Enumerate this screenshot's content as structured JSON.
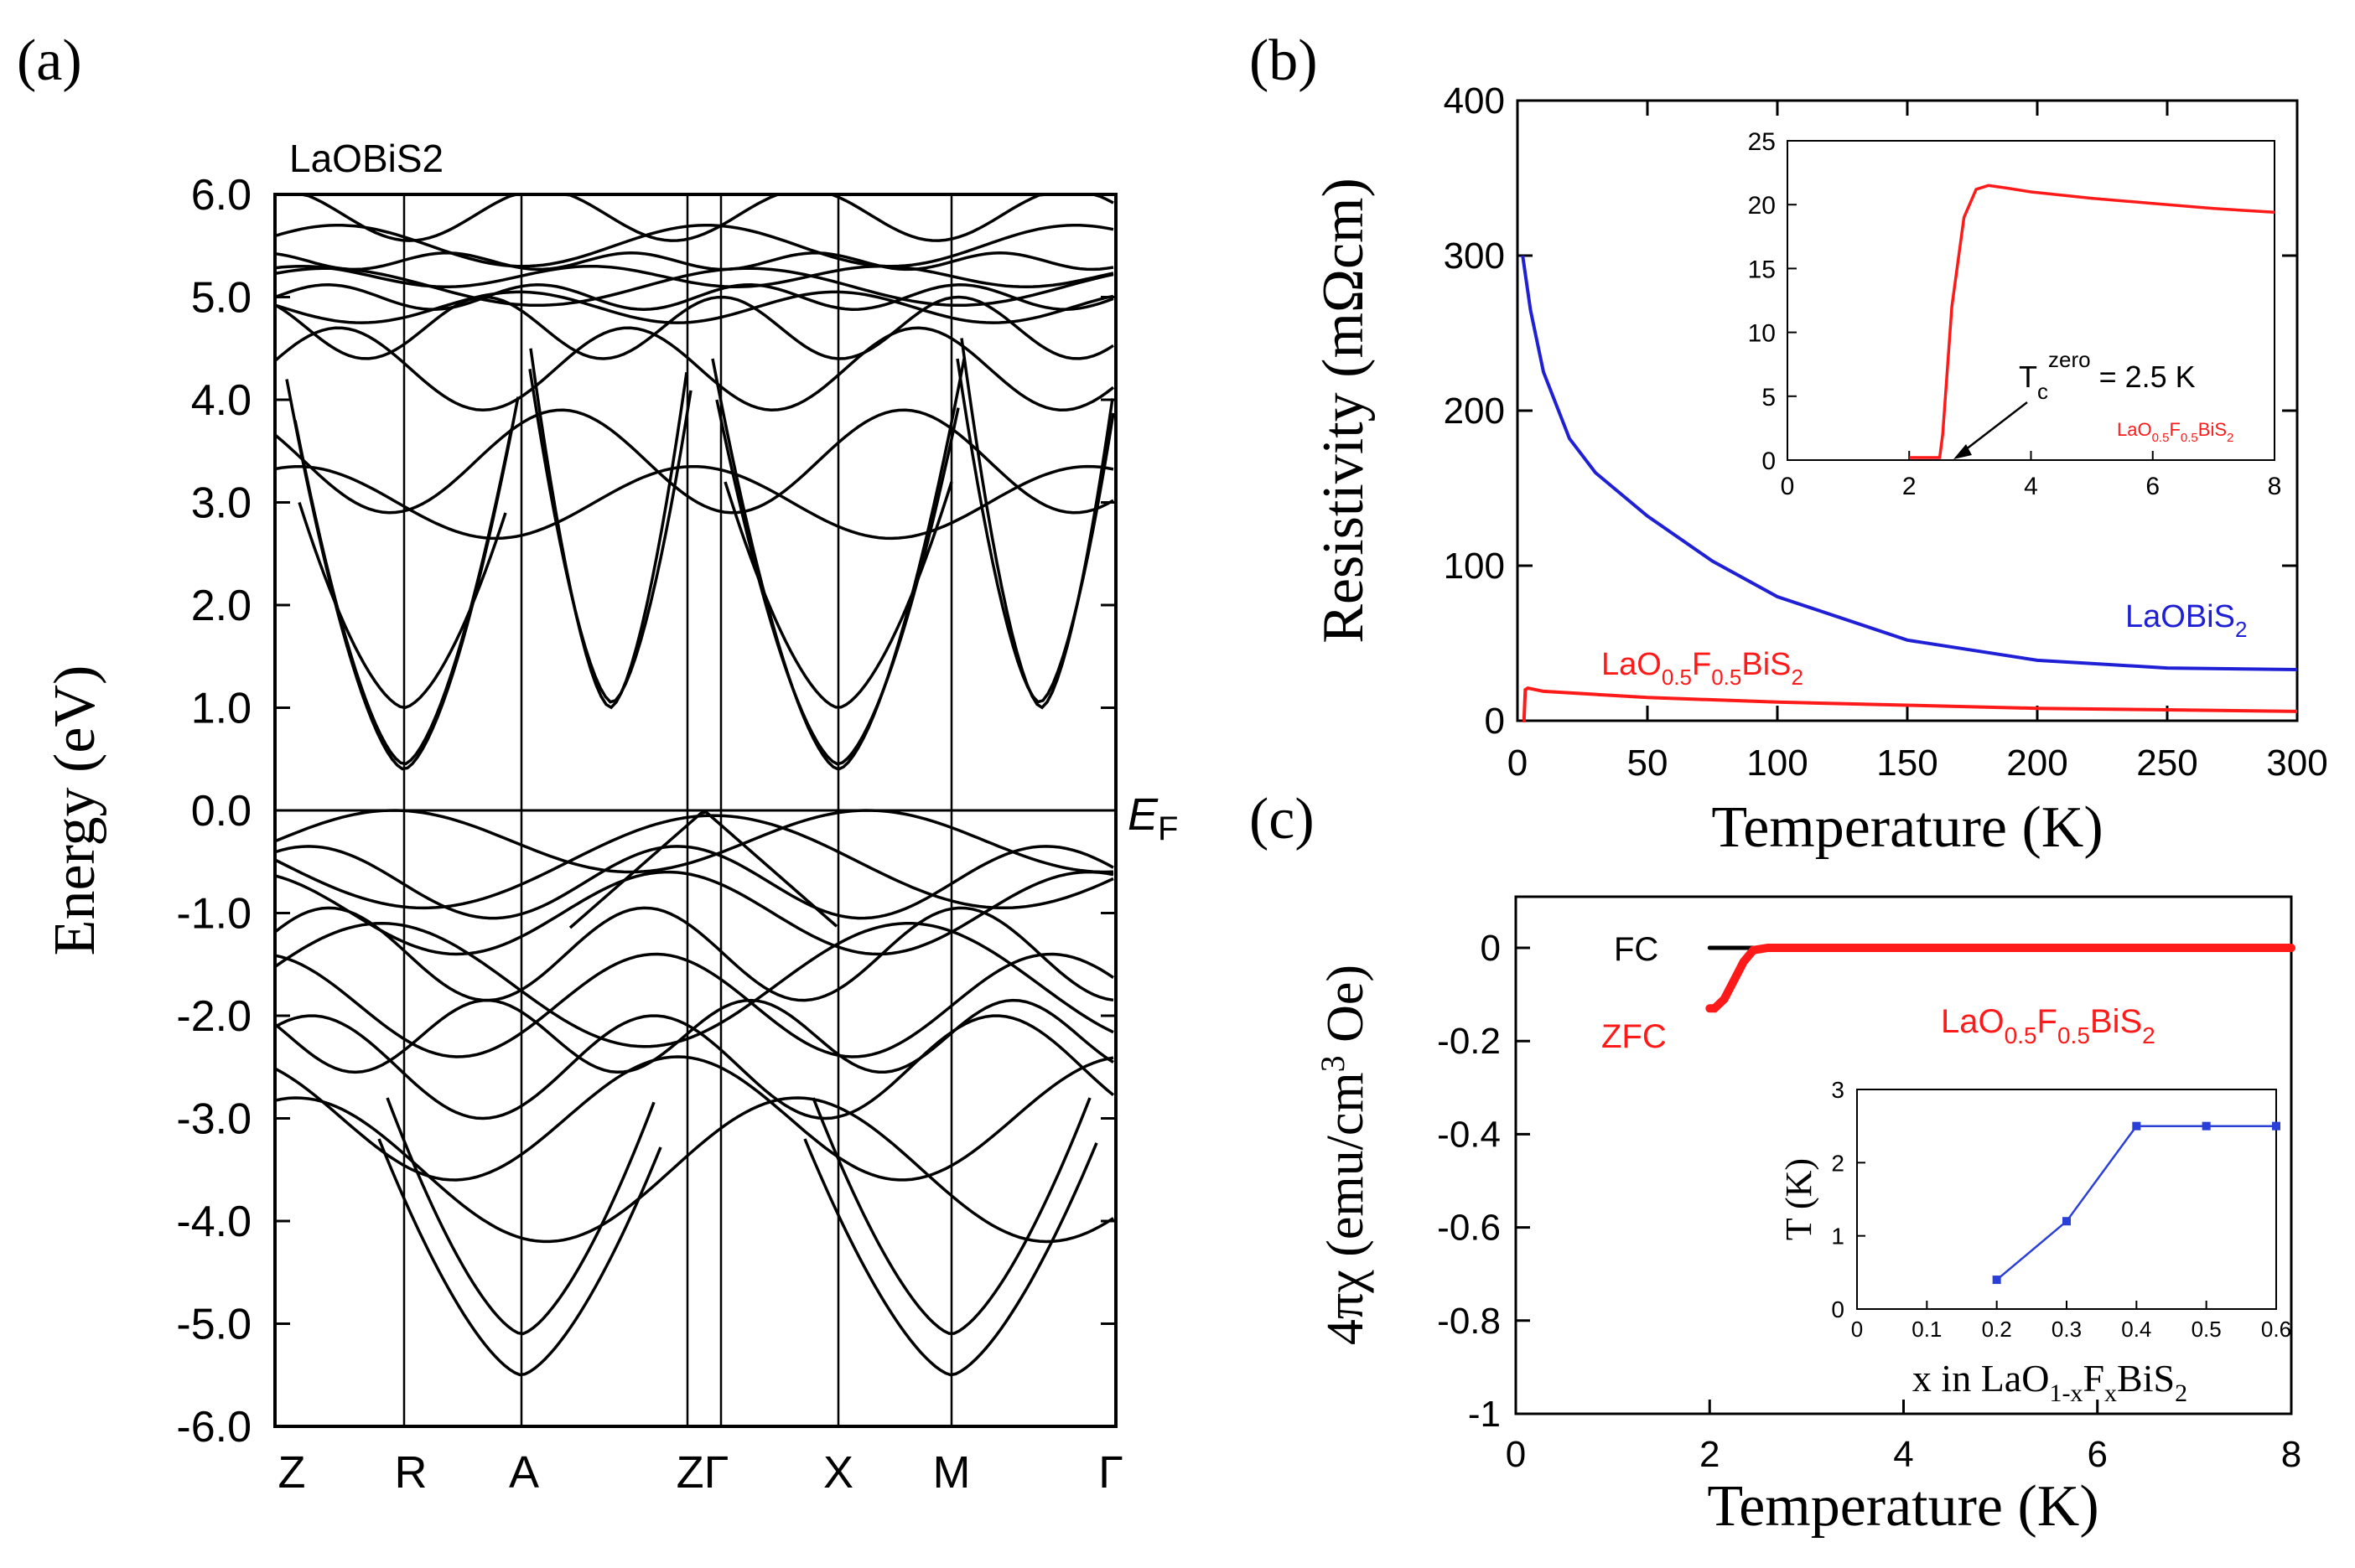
{
  "panels": {
    "a": {
      "label": "(a)"
    },
    "b": {
      "label": "(b)"
    },
    "c": {
      "label": "(c)"
    }
  },
  "chart_data": [
    {
      "id": "a",
      "type": "line",
      "title": "LaOBiS2",
      "ylabel": "Energy (eV)",
      "xlabel": "",
      "ylim": [
        -6.0,
        6.0
      ],
      "yticks": [
        "6.0",
        "5.0",
        "4.0",
        "3.0",
        "2.0",
        "1.0",
        "0.0",
        "-1.0",
        "-2.0",
        "-3.0",
        "-4.0",
        "-5.0",
        "-6.0"
      ],
      "kpoints": [
        "Z",
        "R",
        "A",
        "Z",
        "Γ",
        "X",
        "M",
        "Γ"
      ],
      "kpoint_labels": [
        "Z",
        "R",
        "A",
        "ZΓ",
        "X",
        "M",
        "Γ"
      ],
      "fermi_label": "EF",
      "band_note": "band structure; conduction band minima near 0.4 eV (R, X) and 1.0 eV (A, M); valence band maximum at 0.0 eV near Z–Γ",
      "conduction_min_eV": [
        0.4,
        1.0,
        0.4,
        1.0
      ],
      "valence_max_eV": 0.0
    },
    {
      "id": "b",
      "type": "line",
      "xlabel": "Temperature (K)",
      "ylabel": "Resistivity (mΩcm)",
      "xlim": [
        0,
        300
      ],
      "ylim": [
        0,
        400
      ],
      "xticks": [
        0,
        50,
        100,
        150,
        200,
        250,
        300
      ],
      "yticks": [
        0,
        100,
        200,
        300,
        400
      ],
      "series": [
        {
          "name": "LaOBiS2",
          "color": "#1f1fd6",
          "x": [
            2,
            5,
            10,
            20,
            30,
            50,
            75,
            100,
            150,
            200,
            250,
            300
          ],
          "y": [
            300,
            265,
            225,
            182,
            160,
            132,
            103,
            80,
            52,
            39,
            34,
            33
          ]
        },
        {
          "name": "LaO0.5F0.5BiS2",
          "color": "#ff1a1a",
          "x": [
            2,
            2.5,
            3,
            4,
            10,
            50,
            100,
            150,
            200,
            250,
            300
          ],
          "y": [
            0,
            0,
            20,
            21,
            19,
            15,
            12,
            10,
            8,
            7,
            6
          ]
        }
      ],
      "labels": {
        "s1": {
          "base": "LaOBiS",
          "sub": "2"
        },
        "s2": {
          "p1": "LaO",
          "s1": "0.5",
          "p2": "F",
          "s2": "0.5",
          "p3": "BiS",
          "s3": "2"
        }
      },
      "inset": {
        "xlim": [
          0,
          8
        ],
        "ylim": [
          0,
          25
        ],
        "xticks": [
          0,
          2,
          4,
          6,
          8
        ],
        "yticks": [
          0,
          5,
          10,
          15,
          20,
          25
        ],
        "series": [
          {
            "name": "LaO0.5F0.5BiS2",
            "color": "#ff1a1a",
            "x": [
              2.0,
              2.5,
              2.55,
              2.7,
              2.9,
              3.1,
              3.3,
              3.6,
              4.0,
              5.0,
              6.0,
              7.0,
              8.0
            ],
            "y": [
              0.2,
              0.2,
              2.0,
              12.0,
              19.0,
              21.2,
              21.5,
              21.3,
              21.0,
              20.5,
              20.1,
              19.7,
              19.4
            ]
          }
        ],
        "annotation": {
          "base": "T",
          "sub": "c",
          "sup": "zero",
          "rest": " = 2.5 K"
        },
        "label": {
          "p1": "LaO",
          "s1": "0.5",
          "p2": "F",
          "s2": "0.5",
          "p3": "BiS",
          "s3": "2"
        }
      }
    },
    {
      "id": "c",
      "type": "line",
      "xlabel": "Temperature (K)",
      "ylabel_parts": {
        "p1": "4πχ (emu/cm",
        "sup": "3",
        "p2": " Oe)"
      },
      "ylabel": "4πχ (emu/cm3 Oe)",
      "xlim": [
        0,
        8
      ],
      "ylim": [
        -1,
        0.1
      ],
      "xticks": [
        0,
        2,
        4,
        6,
        8
      ],
      "yticks": [
        "0",
        "-0.2",
        "-0.4",
        "-0.6",
        "-0.8",
        "-1"
      ],
      "series": [
        {
          "name": "FC",
          "color": "#000000",
          "x": [
            2.0,
            2.5,
            3.0,
            4.0,
            6.0,
            8.0
          ],
          "y": [
            0,
            0,
            0,
            0,
            0,
            0
          ]
        },
        {
          "name": "ZFC",
          "color": "#ff1a1a",
          "x": [
            2.0,
            2.05,
            2.15,
            2.25,
            2.35,
            2.45,
            2.6,
            3.0,
            4.0,
            6.0,
            8.0
          ],
          "y": [
            -0.13,
            -0.13,
            -0.11,
            -0.07,
            -0.03,
            -0.005,
            0,
            0,
            0,
            0,
            0
          ]
        }
      ],
      "labels": {
        "fc": "FC",
        "zfc": "ZFC",
        "compound": {
          "p1": "LaO",
          "s1": "0.5",
          "p2": "F",
          "s2": "0.5",
          "p3": "BiS",
          "s3": "2"
        }
      },
      "inset": {
        "xlabel_parts": {
          "p1": "x in LaO",
          "s1": "1-x",
          "p2": "F",
          "s2": "x",
          "p3": "BiS",
          "s3": "2"
        },
        "xlabel": "x in LaO1-xFxBiS2",
        "ylabel": "T (K)",
        "xlim": [
          0,
          0.6
        ],
        "ylim": [
          0,
          3
        ],
        "xticks": [
          "0",
          "0.1",
          "0.2",
          "0.3",
          "0.4",
          "0.5",
          "0.6"
        ],
        "yticks": [
          "0",
          "1",
          "2",
          "3"
        ],
        "series": [
          {
            "name": "Tc",
            "color": "#2a3fd8",
            "x": [
              0.2,
              0.3,
              0.4,
              0.5,
              0.6
            ],
            "y": [
              0.4,
              1.2,
              2.5,
              2.5,
              2.5
            ]
          }
        ]
      }
    }
  ]
}
